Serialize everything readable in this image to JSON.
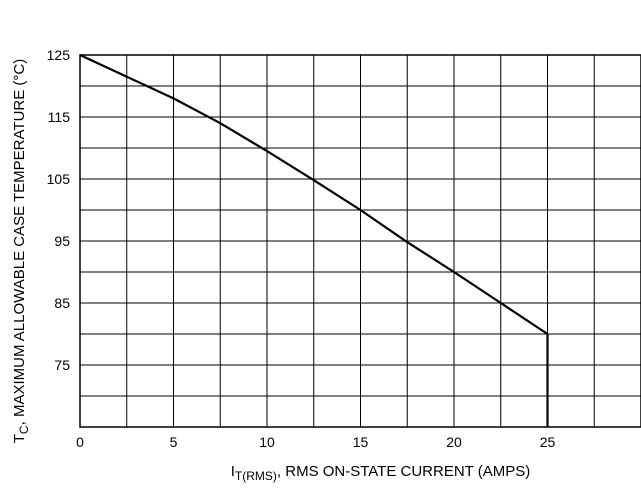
{
  "chart_data": {
    "type": "line",
    "title": "",
    "xlabel": {
      "main": "I",
      "sub": "T(RMS)",
      "rest": ", RMS ON-STATE CURRENT (AMPS)"
    },
    "ylabel": {
      "main": "T",
      "sub": "C",
      "rest": ", MAXIMUM ALLOWABLE CASE TEMPERATURE (°C)"
    },
    "xlim": [
      0,
      30
    ],
    "ylim": [
      65,
      125
    ],
    "x_ticks": [
      0,
      5,
      10,
      15,
      20,
      25
    ],
    "y_ticks": [
      75,
      85,
      95,
      105,
      115,
      125
    ],
    "x_grid_step": 2.5,
    "y_grid_step": 5,
    "grid": true,
    "series": [
      {
        "x": [
          0,
          2.5,
          5,
          7.5,
          10,
          12.5,
          15,
          17.5,
          20,
          22.5,
          25,
          25
        ],
        "y": [
          125,
          121.5,
          118,
          114,
          109.5,
          104.8,
          100,
          94.8,
          90,
          85,
          80,
          65
        ],
        "color": "#000000"
      }
    ]
  }
}
